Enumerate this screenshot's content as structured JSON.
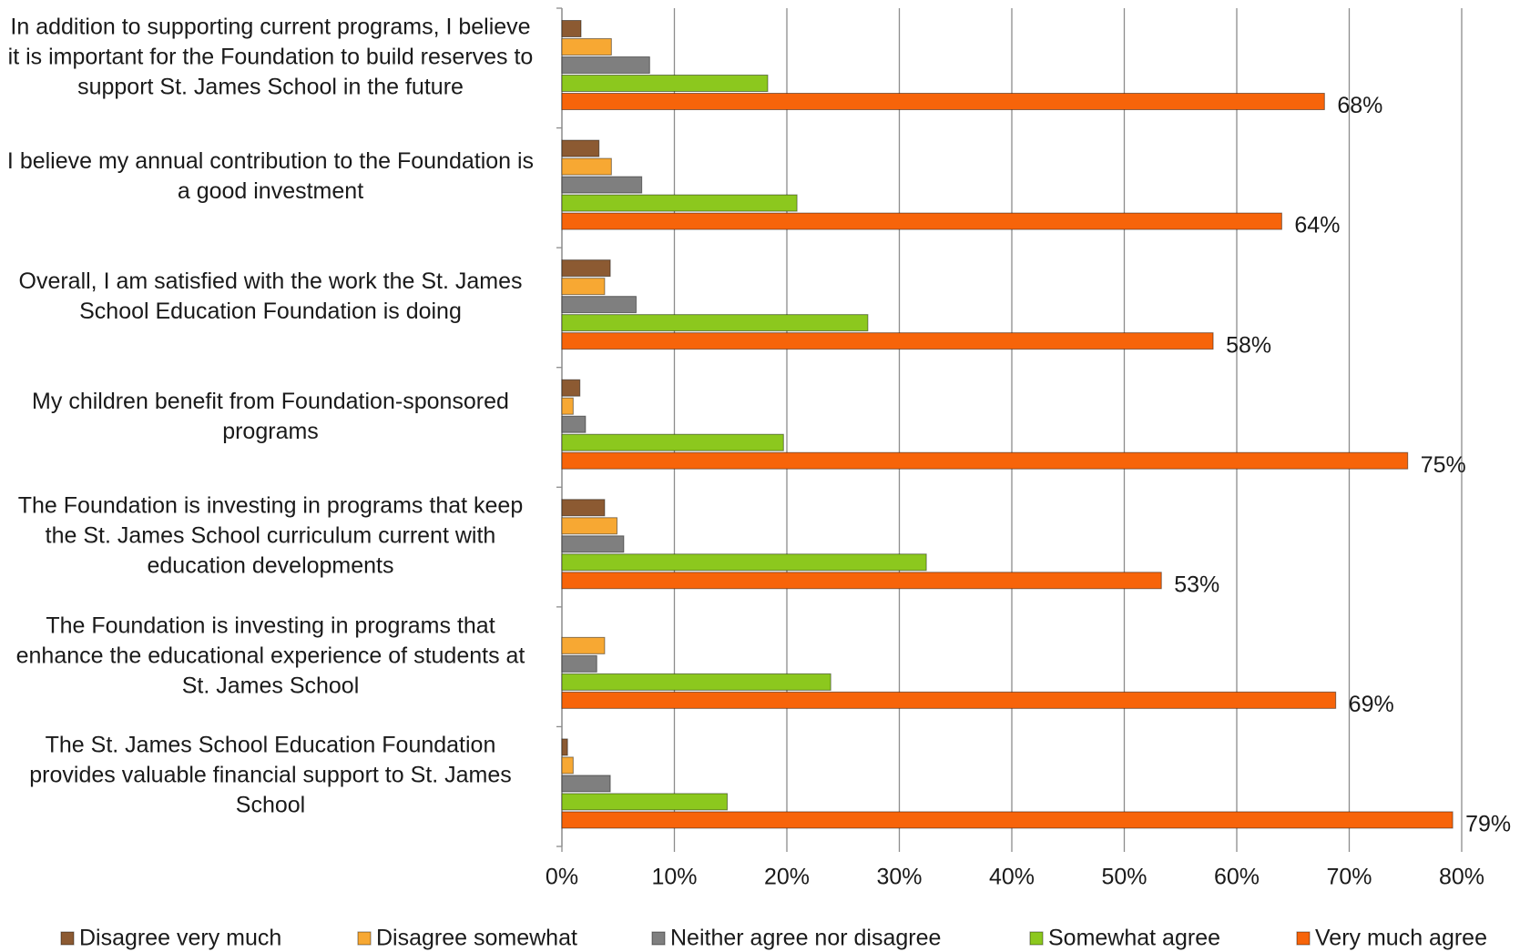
{
  "chart_data": {
    "type": "bar",
    "orientation": "horizontal",
    "categories": [
      "In addition to supporting current programs, I believe it is important for the  Foundation to build reserves to support St. James School in the future",
      "I believe my annual contribution to the Foundation is a good investment",
      "Overall, I am satisfied with the work the St. James School Education Foundation is doing",
      "My children benefit from Foundation-sponsored programs",
      "The Foundation is investing in programs that keep the St. James School curriculum current with education developments",
      "The Foundation is investing in programs that enhance the educational experience of students at St. James School",
      "The St. James School Education Foundation provides valuable financial support to St. James School"
    ],
    "series": [
      {
        "name": "Disagree very much",
        "color": "#8c5a32",
        "values": [
          1.7,
          3.3,
          4.3,
          1.6,
          3.8,
          0,
          0.5
        ]
      },
      {
        "name": "Disagree somewhat",
        "color": "#f7a833",
        "values": [
          4.4,
          4.4,
          3.8,
          1.0,
          4.9,
          3.8,
          1.0
        ]
      },
      {
        "name": "Neither agree nor disagree",
        "color": "#7f7f7f",
        "values": [
          7.8,
          7.1,
          6.6,
          2.1,
          5.5,
          3.1,
          4.3
        ]
      },
      {
        "name": "Somewhat agree",
        "color": "#8cc81e",
        "values": [
          18.3,
          20.9,
          27.2,
          19.7,
          32.4,
          23.9,
          14.7
        ]
      },
      {
        "name": "Very much agree",
        "color": "#f7640a",
        "values": [
          67.8,
          64,
          57.9,
          75.2,
          53.3,
          68.8,
          79.2
        ],
        "value_labels": [
          "68%",
          "64%",
          "58%",
          "75%",
          "53%",
          "69%",
          "79%"
        ]
      }
    ],
    "xlim": [
      0,
      80
    ],
    "xticks": [
      {
        "value": 0,
        "label": "0%"
      },
      {
        "value": 10,
        "label": "10%"
      },
      {
        "value": 20,
        "label": "20%"
      },
      {
        "value": 30,
        "label": "30%"
      },
      {
        "value": 40,
        "label": "40%"
      },
      {
        "value": 50,
        "label": "50%"
      },
      {
        "value": 60,
        "label": "60%"
      },
      {
        "value": 70,
        "label": "70%"
      },
      {
        "value": 80,
        "label": "80%"
      }
    ],
    "grid": true,
    "legend": "bottom"
  }
}
